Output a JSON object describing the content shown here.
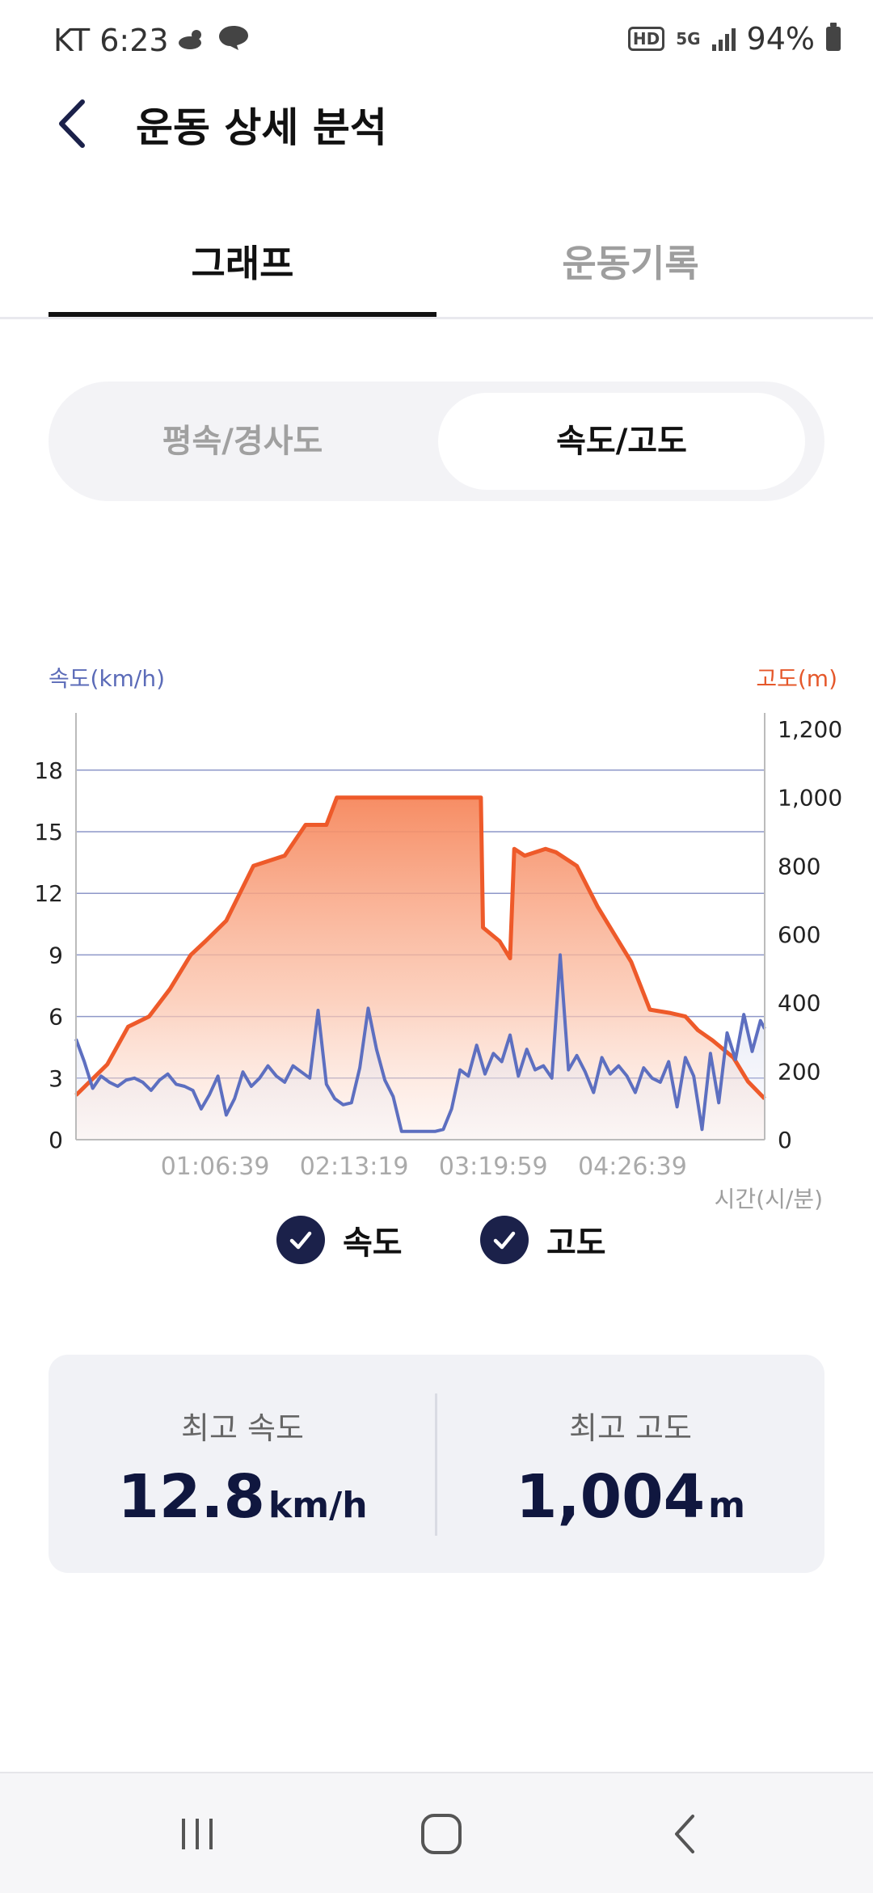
{
  "status_bar": {
    "carrier_time": "KT 6:23",
    "hd_badge": "HD",
    "network": "5G",
    "battery": "94%"
  },
  "header": {
    "title": "운동 상세 분석"
  },
  "tabs": [
    {
      "label": "그래프",
      "active": true
    },
    {
      "label": "운동기록",
      "active": false
    }
  ],
  "segment": {
    "left_label": "평속/경사도",
    "right_label": "속도/고도",
    "selected": "속도/고도"
  },
  "chart_data": {
    "type": "line",
    "left_axis_label": "속도(km/h)",
    "right_axis_label": "고도(m)",
    "x_axis_label": "시간(시/분)",
    "left_ticks": [
      "0",
      "3",
      "6",
      "9",
      "12",
      "15",
      "18"
    ],
    "right_ticks": [
      "0",
      "200",
      "400",
      "600",
      "800",
      "1,000",
      "1,200"
    ],
    "x_ticks": [
      "01:06:39",
      "02:13:19",
      "03:19:59",
      "04:26:39"
    ],
    "left_range": [
      0,
      20
    ],
    "right_range": [
      0,
      1200
    ],
    "x_range_minutes": [
      0,
      330
    ],
    "grid": true,
    "series": [
      {
        "name": "고도",
        "color": "#ee5a2a",
        "axis": "right",
        "x_minutes": [
          0,
          15,
          25,
          35,
          45,
          55,
          62,
          72,
          85,
          100,
          110,
          120,
          125,
          135,
          142,
          148,
          155,
          158,
          175,
          190,
          194,
          195,
          203,
          208,
          210,
          215,
          225,
          230,
          240,
          250,
          258,
          266,
          275,
          285,
          292,
          298,
          305,
          315,
          322,
          330
        ],
        "values": [
          130,
          220,
          330,
          360,
          440,
          540,
          580,
          640,
          800,
          830,
          920,
          920,
          1000,
          1000,
          1000,
          1000,
          1000,
          1000,
          1000,
          1000,
          1000,
          620,
          580,
          530,
          850,
          830,
          850,
          840,
          800,
          680,
          600,
          520,
          380,
          370,
          360,
          320,
          290,
          240,
          170,
          120
        ]
      },
      {
        "name": "속도",
        "color": "#5d6fc0",
        "axis": "left",
        "x_minutes": [
          0,
          4,
          8,
          12,
          16,
          20,
          24,
          28,
          32,
          36,
          40,
          44,
          48,
          52,
          56,
          60,
          64,
          68,
          72,
          76,
          80,
          84,
          88,
          92,
          96,
          100,
          104,
          108,
          112,
          116,
          120,
          124,
          128,
          132,
          136,
          140,
          144,
          148,
          152,
          156,
          160,
          164,
          168,
          172,
          176,
          180,
          184,
          188,
          192,
          196,
          200,
          204,
          208,
          212,
          216,
          220,
          224,
          228,
          232,
          236,
          240,
          244,
          248,
          252,
          256,
          260,
          264,
          268,
          272,
          276,
          280,
          284,
          288,
          292,
          296,
          300,
          304,
          308,
          312,
          316,
          320,
          324,
          328,
          330
        ],
        "values": [
          4.9,
          3.8,
          2.5,
          3.1,
          2.8,
          2.6,
          2.9,
          3.0,
          2.8,
          2.4,
          2.9,
          3.2,
          2.7,
          2.6,
          2.4,
          1.5,
          2.2,
          3.1,
          1.2,
          2.0,
          3.3,
          2.6,
          3.0,
          3.6,
          3.1,
          2.8,
          3.6,
          3.3,
          3.0,
          6.3,
          2.7,
          2.0,
          1.7,
          1.8,
          3.5,
          6.4,
          4.4,
          2.9,
          2.1,
          0.4,
          0.4,
          0.4,
          0.4,
          0.4,
          0.5,
          1.5,
          3.4,
          3.1,
          4.6,
          3.2,
          4.2,
          3.8,
          5.1,
          3.1,
          4.4,
          3.4,
          3.6,
          3.0,
          9.0,
          3.4,
          4.1,
          3.3,
          2.3,
          4.0,
          3.2,
          3.6,
          3.1,
          2.3,
          3.5,
          3.0,
          2.8,
          3.8,
          1.6,
          4.0,
          3.1,
          0.5,
          4.2,
          1.8,
          5.2,
          3.9,
          6.1,
          4.3,
          5.8,
          5.4
        ]
      }
    ]
  },
  "legend": [
    {
      "label": "속도",
      "checked": true
    },
    {
      "label": "고도",
      "checked": true
    }
  ],
  "summary": {
    "max_speed_label": "최고 속도",
    "max_speed_value": "12.8",
    "max_speed_unit": "km/h",
    "max_alt_label": "최고 고도",
    "max_alt_value": "1,004",
    "max_alt_unit": "m"
  },
  "nav": {
    "recents_icon": "recents-icon",
    "home_icon": "home-icon",
    "back_icon": "back-icon"
  }
}
